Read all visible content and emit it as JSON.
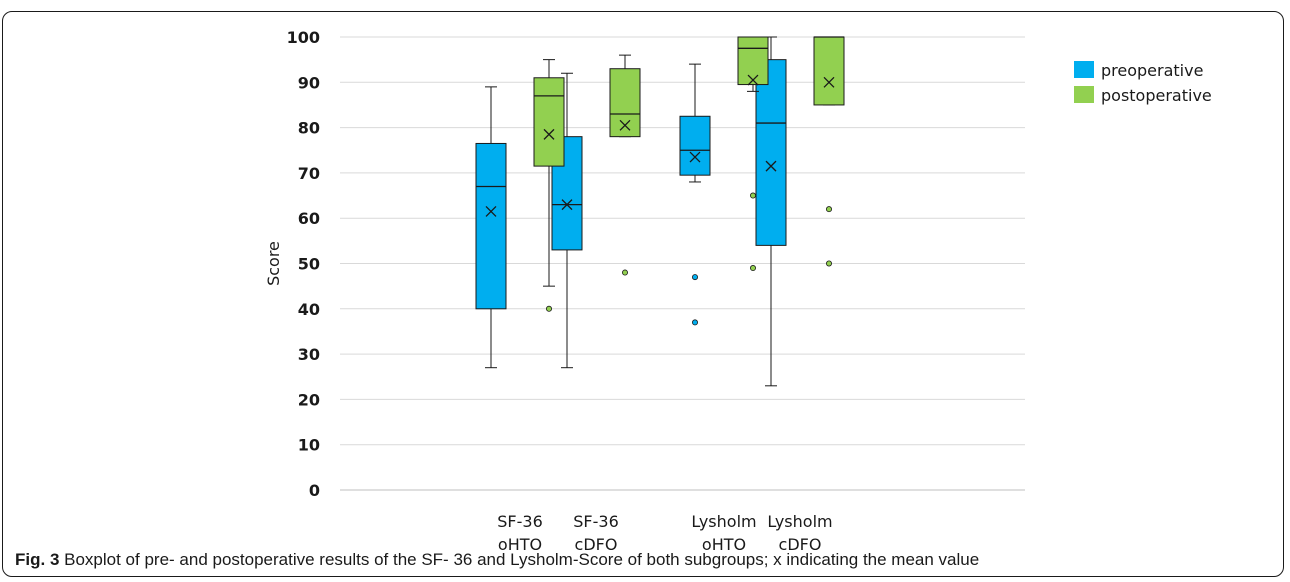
{
  "chart_data": {
    "type": "boxplot",
    "ylabel": "Score",
    "xlabel": "",
    "ylim": [
      0,
      100
    ],
    "yticks": [
      0,
      10,
      20,
      30,
      40,
      50,
      60,
      70,
      80,
      90,
      100
    ],
    "grid": "horizontal",
    "legend_position": "top-right",
    "categories": [
      {
        "line1": "SF-36",
        "line2": "oHTO"
      },
      {
        "line1": "SF-36",
        "line2": "cDFO"
      },
      {
        "line1": "Lysholm",
        "line2": "oHTO"
      },
      {
        "line1": "Lysholm",
        "line2": "cDFO"
      }
    ],
    "series": [
      {
        "name": "preoperative",
        "color": "#00AEEF",
        "boxes": [
          {
            "min": 27,
            "q1": 40,
            "median": 67,
            "q3": 76.5,
            "max": 89,
            "mean": 61.5,
            "outliers": []
          },
          {
            "min": 27,
            "q1": 53,
            "median": 63,
            "q3": 78,
            "max": 92,
            "mean": 63,
            "outliers": []
          },
          {
            "min": 68,
            "q1": 69.5,
            "median": 75,
            "q3": 82.5,
            "max": 94,
            "mean": 73.5,
            "outliers": [
              47,
              37
            ]
          },
          {
            "min": 23,
            "q1": 54,
            "median": 81,
            "q3": 95,
            "max": 100,
            "mean": 71.5,
            "outliers": []
          }
        ]
      },
      {
        "name": "postoperative",
        "color": "#92D050",
        "boxes": [
          {
            "min": 45,
            "q1": 71.5,
            "median": 87,
            "q3": 91,
            "max": 95,
            "mean": 78.5,
            "outliers": [
              40
            ]
          },
          {
            "min": 78,
            "q1": 78,
            "median": 83,
            "q3": 93,
            "max": 96,
            "mean": 80.5,
            "outliers": [
              48
            ]
          },
          {
            "min": 88,
            "q1": 89.5,
            "median": 97.5,
            "q3": 100,
            "max": 100,
            "mean": 90.5,
            "outliers": [
              65,
              49
            ]
          },
          {
            "min": 85,
            "q1": 85,
            "median": 100,
            "q3": 100,
            "max": 100,
            "mean": 90,
            "outliers": [
              62,
              50
            ]
          }
        ]
      }
    ]
  },
  "caption": {
    "label": "Fig. 3",
    "text": " Boxplot of pre- and postoperative results of the SF- 36 and Lysholm-Score of both subgroups; x indicating the mean value"
  }
}
